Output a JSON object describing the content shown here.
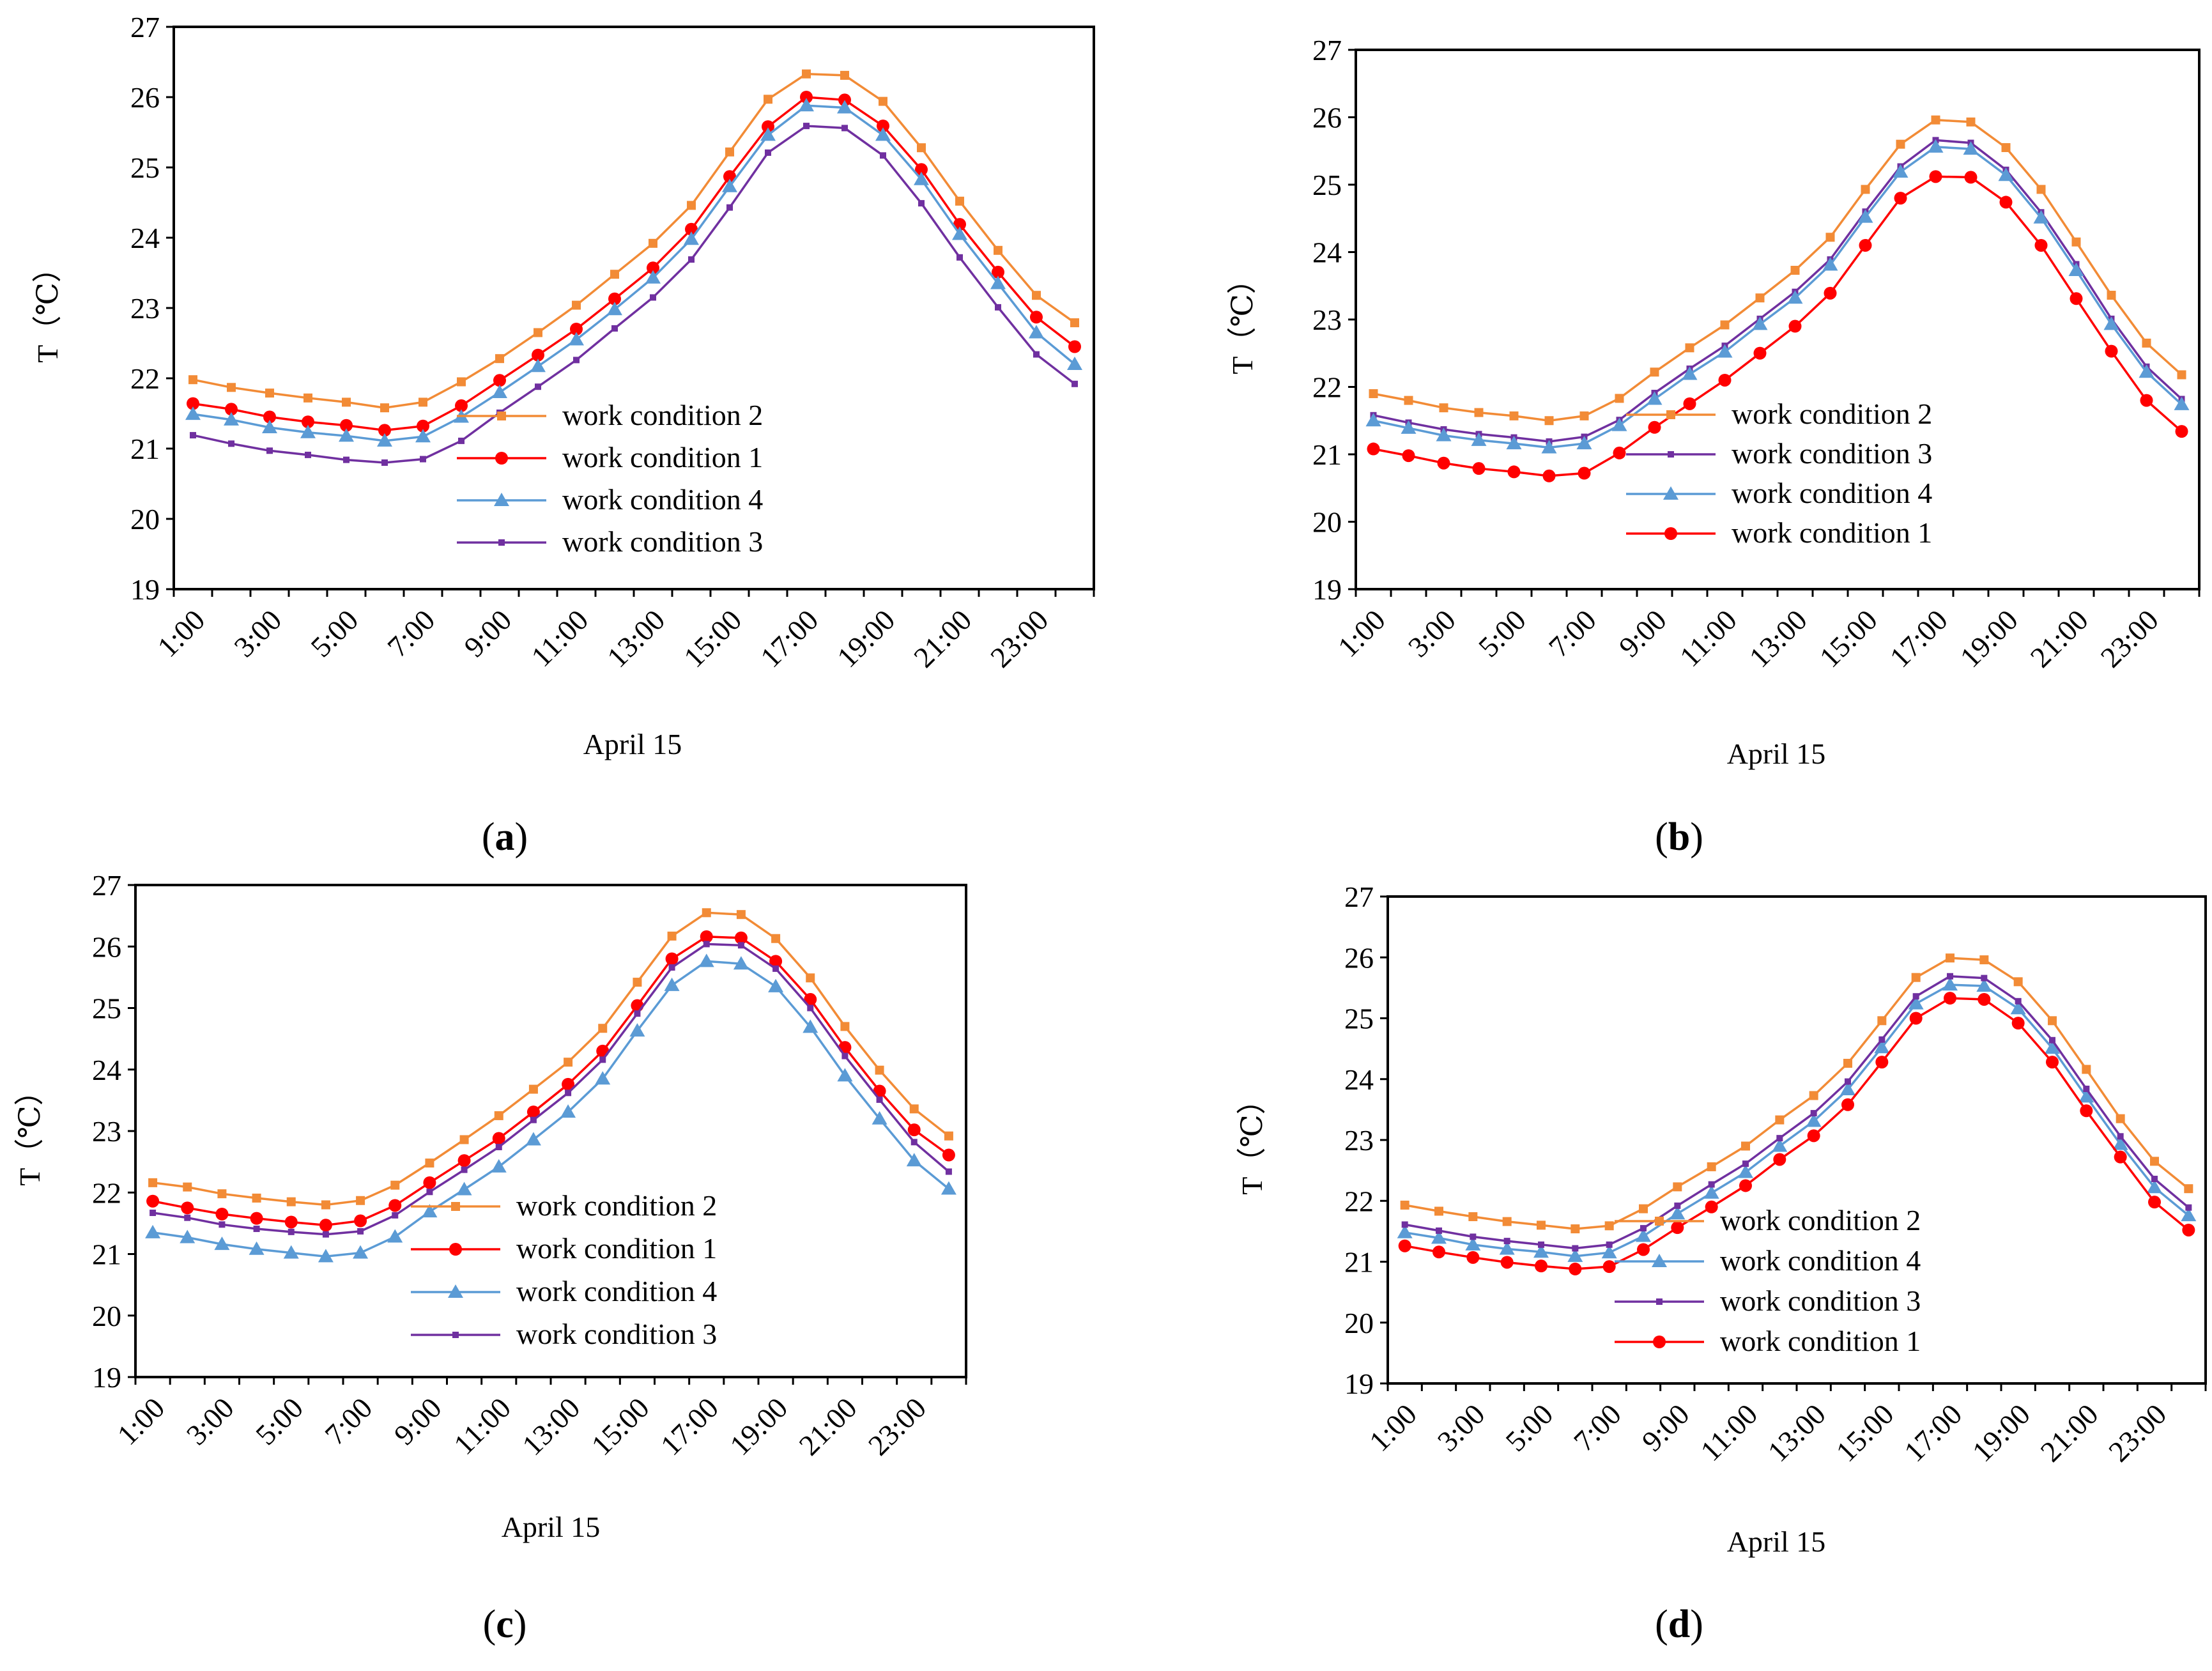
{
  "chart_data": [
    {
      "panel": "a",
      "type": "line",
      "caption": "(a)",
      "caption_letter": "a",
      "xlabel": "April 15",
      "ylabel": "T（℃）",
      "ylim": [
        19,
        27
      ],
      "yticks": [
        "19",
        "20",
        "21",
        "22",
        "23",
        "24",
        "25",
        "26",
        "27"
      ],
      "xtick_labels": [
        "1:00",
        "3:00",
        "5:00",
        "7:00",
        "9:00",
        "11:00",
        "13:00",
        "15:00",
        "17:00",
        "19:00",
        "21:00",
        "23:00"
      ],
      "hours": [
        "1:00",
        "2:00",
        "3:00",
        "4:00",
        "5:00",
        "6:00",
        "7:00",
        "8:00",
        "9:00",
        "10:00",
        "11:00",
        "12:00",
        "13:00",
        "14:00",
        "15:00",
        "16:00",
        "17:00",
        "18:00",
        "19:00",
        "20:00",
        "21:00",
        "22:00",
        "23:00",
        "24:00"
      ],
      "legend_order": [
        "work condition 2",
        "work condition 1",
        "work condition 4",
        "work condition 3"
      ],
      "series": [
        {
          "name": "work condition 2",
          "color": "#F28B36",
          "marker": "square",
          "values": [
            21.98,
            21.87,
            21.79,
            21.72,
            21.66,
            21.58,
            21.66,
            21.95,
            22.28,
            22.65,
            23.04,
            23.48,
            23.92,
            24.46,
            25.22,
            25.97,
            26.33,
            26.31,
            25.94,
            25.28,
            24.52,
            23.82,
            23.18,
            22.79
          ]
        },
        {
          "name": "work condition 1",
          "color": "#FF0000",
          "marker": "circle",
          "values": [
            21.64,
            21.56,
            21.45,
            21.38,
            21.33,
            21.26,
            21.32,
            21.61,
            21.97,
            22.33,
            22.7,
            23.13,
            23.57,
            24.12,
            24.87,
            25.58,
            26.0,
            25.96,
            25.59,
            24.97,
            24.19,
            23.51,
            22.87,
            22.45
          ]
        },
        {
          "name": "work condition 4",
          "color": "#5B9BD5",
          "marker": "triangle",
          "values": [
            21.49,
            21.41,
            21.3,
            21.23,
            21.18,
            21.11,
            21.17,
            21.45,
            21.8,
            22.17,
            22.55,
            22.98,
            23.43,
            23.98,
            24.73,
            25.46,
            25.88,
            25.85,
            25.46,
            24.83,
            24.05,
            23.35,
            22.65,
            22.2
          ]
        },
        {
          "name": "work condition 3",
          "color": "#7030A0",
          "marker": "smallsquare",
          "values": [
            21.19,
            21.07,
            20.97,
            20.91,
            20.84,
            20.8,
            20.85,
            21.11,
            21.51,
            21.88,
            22.26,
            22.71,
            23.15,
            23.69,
            24.43,
            25.21,
            25.59,
            25.56,
            25.17,
            24.49,
            23.72,
            23.01,
            22.34,
            21.92
          ]
        }
      ]
    },
    {
      "panel": "b",
      "type": "line",
      "caption": "(b)",
      "caption_letter": "b",
      "xlabel": "April 15",
      "ylabel": "T（℃）",
      "ylim": [
        19,
        27
      ],
      "yticks": [
        "19",
        "20",
        "21",
        "22",
        "23",
        "24",
        "25",
        "26",
        "27"
      ],
      "xtick_labels": [
        "1:00",
        "3:00",
        "5:00",
        "7:00",
        "9:00",
        "11:00",
        "13:00",
        "15:00",
        "17:00",
        "19:00",
        "21:00",
        "23:00"
      ],
      "hours": [
        "1:00",
        "2:00",
        "3:00",
        "4:00",
        "5:00",
        "6:00",
        "7:00",
        "8:00",
        "9:00",
        "10:00",
        "11:00",
        "12:00",
        "13:00",
        "14:00",
        "15:00",
        "16:00",
        "17:00",
        "18:00",
        "19:00",
        "20:00",
        "21:00",
        "22:00",
        "23:00",
        "24:00"
      ],
      "legend_order": [
        "work condition 2",
        "work condition 3",
        "work condition 4",
        "work condition 1"
      ],
      "series": [
        {
          "name": "work condition 2",
          "color": "#F28B36",
          "marker": "square",
          "values": [
            21.9,
            21.8,
            21.69,
            21.62,
            21.57,
            21.5,
            21.57,
            21.83,
            22.22,
            22.58,
            22.92,
            23.32,
            23.73,
            24.22,
            24.93,
            25.6,
            25.96,
            25.93,
            25.55,
            24.93,
            24.15,
            23.36,
            22.65,
            22.18
          ]
        },
        {
          "name": "work condition 3",
          "color": "#7030A0",
          "marker": "smallsquare",
          "values": [
            21.58,
            21.47,
            21.37,
            21.3,
            21.25,
            21.19,
            21.26,
            21.51,
            21.91,
            22.27,
            22.61,
            23.01,
            23.41,
            23.89,
            24.6,
            25.27,
            25.66,
            25.62,
            25.22,
            24.59,
            23.82,
            23.01,
            22.3,
            21.82
          ]
        },
        {
          "name": "work condition 4",
          "color": "#5B9BD5",
          "marker": "triangle",
          "values": [
            21.5,
            21.39,
            21.28,
            21.21,
            21.16,
            21.1,
            21.16,
            21.43,
            21.82,
            22.19,
            22.52,
            22.93,
            23.32,
            23.81,
            24.52,
            25.19,
            25.56,
            25.53,
            25.14,
            24.51,
            23.73,
            22.93,
            22.22,
            21.74
          ]
        },
        {
          "name": "work condition 1",
          "color": "#FF0000",
          "marker": "circle",
          "values": [
            21.08,
            20.98,
            20.87,
            20.79,
            20.74,
            20.68,
            20.72,
            21.02,
            21.4,
            21.75,
            22.1,
            22.5,
            22.9,
            23.39,
            24.1,
            24.8,
            25.12,
            25.11,
            24.74,
            24.1,
            23.31,
            22.53,
            21.8,
            21.34
          ]
        }
      ]
    },
    {
      "panel": "c",
      "type": "line",
      "caption": "(c)",
      "caption_letter": "c",
      "xlabel": "April 15",
      "ylabel": "T（℃）",
      "ylim": [
        19,
        27
      ],
      "yticks": [
        "19",
        "20",
        "21",
        "22",
        "23",
        "24",
        "25",
        "26",
        "27"
      ],
      "xtick_labels": [
        "1:00",
        "3:00",
        "5:00",
        "7:00",
        "9:00",
        "11:00",
        "13:00",
        "15:00",
        "17:00",
        "19:00",
        "21:00",
        "23:00"
      ],
      "hours": [
        "1:00",
        "2:00",
        "3:00",
        "4:00",
        "5:00",
        "6:00",
        "7:00",
        "8:00",
        "9:00",
        "10:00",
        "11:00",
        "12:00",
        "13:00",
        "14:00",
        "15:00",
        "16:00",
        "17:00",
        "18:00",
        "19:00",
        "20:00",
        "21:00",
        "22:00",
        "23:00",
        "24:00"
      ],
      "legend_order": [
        "work condition 2",
        "work condition 1",
        "work condition 4",
        "work condition 3"
      ],
      "series": [
        {
          "name": "work condition 2",
          "color": "#F28B36",
          "marker": "square",
          "values": [
            22.16,
            22.09,
            21.98,
            21.91,
            21.85,
            21.8,
            21.87,
            22.12,
            22.48,
            22.86,
            23.25,
            23.68,
            24.12,
            24.67,
            25.42,
            26.17,
            26.55,
            26.52,
            26.13,
            25.49,
            24.7,
            23.99,
            23.36,
            22.92
          ]
        },
        {
          "name": "work condition 1",
          "color": "#FF0000",
          "marker": "circle",
          "values": [
            21.86,
            21.75,
            21.65,
            21.58,
            21.52,
            21.47,
            21.54,
            21.79,
            22.16,
            22.52,
            22.88,
            23.31,
            23.76,
            24.3,
            25.04,
            25.8,
            26.16,
            26.14,
            25.76,
            25.14,
            24.36,
            23.65,
            23.02,
            22.61
          ]
        },
        {
          "name": "work condition 4",
          "color": "#5B9BD5",
          "marker": "triangle",
          "values": [
            21.35,
            21.27,
            21.16,
            21.08,
            21.02,
            20.96,
            21.02,
            21.28,
            21.69,
            22.05,
            22.42,
            22.86,
            23.31,
            23.85,
            24.63,
            25.37,
            25.76,
            25.72,
            25.35,
            24.69,
            23.9,
            23.2,
            22.52,
            22.06
          ]
        },
        {
          "name": "work condition 3",
          "color": "#7030A0",
          "marker": "smallsquare",
          "values": [
            21.67,
            21.59,
            21.48,
            21.41,
            21.36,
            21.32,
            21.37,
            21.63,
            22.01,
            22.37,
            22.74,
            23.18,
            23.62,
            24.16,
            24.91,
            25.66,
            26.04,
            26.02,
            25.64,
            25.0,
            24.22,
            23.51,
            22.82,
            22.34
          ]
        }
      ]
    },
    {
      "panel": "d",
      "type": "line",
      "caption": "(d)",
      "caption_letter": "d",
      "xlabel": "April 15",
      "ylabel": "T（℃）",
      "ylim": [
        19,
        27
      ],
      "yticks": [
        "19",
        "20",
        "21",
        "22",
        "23",
        "24",
        "25",
        "26",
        "27"
      ],
      "xtick_labels": [
        "1:00",
        "3:00",
        "5:00",
        "7:00",
        "9:00",
        "11:00",
        "13:00",
        "15:00",
        "17:00",
        "19:00",
        "21:00",
        "23:00"
      ],
      "hours": [
        "1:00",
        "2:00",
        "3:00",
        "4:00",
        "5:00",
        "6:00",
        "7:00",
        "8:00",
        "9:00",
        "10:00",
        "11:00",
        "12:00",
        "13:00",
        "14:00",
        "15:00",
        "16:00",
        "17:00",
        "18:00",
        "19:00",
        "20:00",
        "21:00",
        "22:00",
        "23:00",
        "24:00"
      ],
      "legend_order": [
        "work condition 2",
        "work condition 4",
        "work condition 3",
        "work condition 1"
      ],
      "series": [
        {
          "name": "work condition 2",
          "color": "#F28B36",
          "marker": "square",
          "values": [
            21.93,
            21.83,
            21.74,
            21.66,
            21.6,
            21.54,
            21.59,
            21.87,
            22.23,
            22.56,
            22.9,
            23.33,
            23.73,
            24.26,
            24.96,
            25.67,
            25.99,
            25.96,
            25.6,
            24.96,
            24.16,
            23.35,
            22.65,
            22.2
          ]
        },
        {
          "name": "work condition 4",
          "color": "#5B9BD5",
          "marker": "triangle",
          "values": [
            21.48,
            21.39,
            21.28,
            21.21,
            21.16,
            21.09,
            21.15,
            21.42,
            21.79,
            22.13,
            22.47,
            22.9,
            23.31,
            23.83,
            24.52,
            25.24,
            25.55,
            25.53,
            25.16,
            24.51,
            23.71,
            22.93,
            22.22,
            21.76
          ]
        },
        {
          "name": "work condition 3",
          "color": "#7030A0",
          "marker": "smallsquare",
          "values": [
            21.61,
            21.51,
            21.41,
            21.34,
            21.28,
            21.22,
            21.28,
            21.55,
            21.92,
            22.27,
            22.61,
            23.03,
            23.44,
            23.96,
            24.65,
            25.36,
            25.69,
            25.66,
            25.28,
            24.64,
            23.84,
            23.06,
            22.36,
            21.89
          ]
        },
        {
          "name": "work condition 1",
          "color": "#FF0000",
          "marker": "circle",
          "values": [
            21.26,
            21.16,
            21.07,
            20.99,
            20.93,
            20.88,
            20.92,
            21.2,
            21.56,
            21.9,
            22.25,
            22.68,
            23.07,
            23.58,
            24.28,
            25.0,
            25.33,
            25.31,
            24.92,
            24.28,
            23.48,
            22.72,
            21.98,
            21.52
          ]
        }
      ]
    }
  ]
}
